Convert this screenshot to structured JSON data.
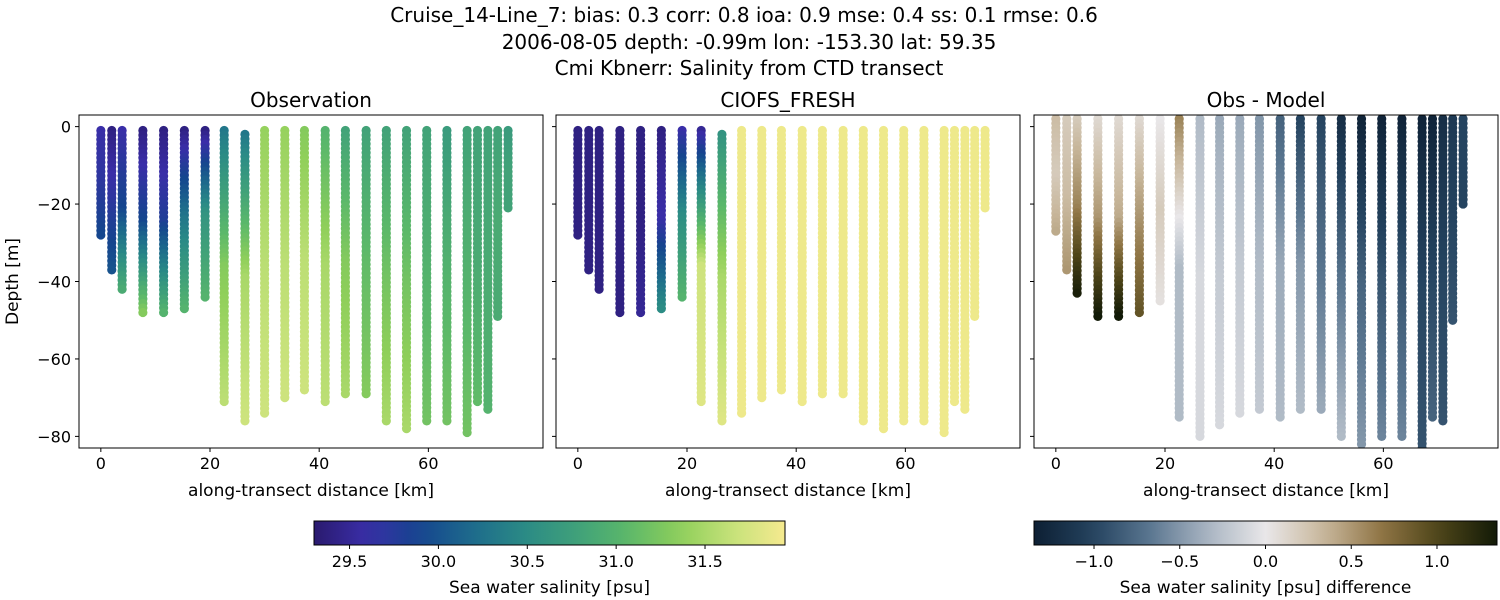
{
  "figure": {
    "title_lines": [
      "Cruise_14-Line_7: bias: 0.3  corr: 0.8  ioa: 0.9  mse: 0.4  ss: 0.1  rmse: 0.6",
      "2006-08-05 depth: -0.99m lon: -153.30 lat: 59.35",
      "Cmi Kbnerr: Salinity from CTD transect"
    ]
  },
  "colors": {
    "salinity_cmap": [
      "#2a1a6e",
      "#3a2ea8",
      "#15458e",
      "#1d6a8c",
      "#2a8a86",
      "#3fa07a",
      "#5bb86a",
      "#8fcf5a",
      "#c6e27a",
      "#f6ea8f"
    ],
    "difference_cmap": [
      "#0d1f33",
      "#23425e",
      "#5a7690",
      "#a9b5c2",
      "#e9e7e9",
      "#c8b79c",
      "#8f7545",
      "#4d4418",
      "#121a07"
    ]
  },
  "chart_data": [
    {
      "type": "scatter",
      "title": "Observation",
      "xlabel": "along-transect distance [km]",
      "ylabel": "Depth [m]",
      "xlim": [
        -4,
        81
      ],
      "ylim": [
        -83,
        3
      ],
      "xticks": [
        0,
        20,
        40,
        60
      ],
      "yticks": [
        0,
        -20,
        -40,
        -60,
        -80
      ],
      "colorbar": "salinity",
      "stations": [
        {
          "x": 0.0,
          "bottom": -28,
          "top": -1,
          "values": [
            29.6,
            29.7,
            29.9
          ]
        },
        {
          "x": 2.0,
          "bottom": -37,
          "top": -1,
          "values": [
            29.4,
            29.7,
            30.0
          ]
        },
        {
          "x": 3.9,
          "bottom": -42,
          "top": -1,
          "values": [
            29.6,
            29.9,
            30.9
          ]
        },
        {
          "x": 7.7,
          "bottom": -48,
          "top": -1,
          "values": [
            29.4,
            29.9,
            31.3
          ]
        },
        {
          "x": 11.5,
          "bottom": -48,
          "top": -1,
          "values": [
            29.4,
            29.8,
            31.0
          ]
        },
        {
          "x": 15.3,
          "bottom": -47,
          "top": -1,
          "values": [
            29.4,
            30.3,
            31.0
          ]
        },
        {
          "x": 19.1,
          "bottom": -44,
          "top": -1,
          "values": [
            29.4,
            30.6,
            31.0
          ]
        },
        {
          "x": 22.6,
          "bottom": -71,
          "top": -1,
          "values": [
            30.3,
            31.3,
            31.6
          ]
        },
        {
          "x": 26.4,
          "bottom": -76,
          "top": -2,
          "values": [
            30.3,
            31.5,
            31.7
          ]
        },
        {
          "x": 30.0,
          "bottom": -74,
          "top": -1,
          "values": [
            31.4,
            31.6,
            31.7
          ]
        },
        {
          "x": 33.7,
          "bottom": -70,
          "top": -1,
          "values": [
            31.4,
            31.6,
            31.7
          ]
        },
        {
          "x": 37.3,
          "bottom": -68,
          "top": -1,
          "values": [
            31.3,
            31.6,
            31.7
          ]
        },
        {
          "x": 41.1,
          "bottom": -71,
          "top": -1,
          "values": [
            31.0,
            31.5,
            31.6
          ]
        },
        {
          "x": 44.8,
          "bottom": -69,
          "top": -1,
          "values": [
            30.8,
            31.3,
            31.5
          ]
        },
        {
          "x": 48.6,
          "bottom": -69,
          "top": -1,
          "values": [
            30.8,
            31.1,
            31.3
          ]
        },
        {
          "x": 52.3,
          "bottom": -76,
          "top": -1,
          "values": [
            30.8,
            31.2,
            31.5
          ]
        },
        {
          "x": 56.0,
          "bottom": -78,
          "top": -1,
          "values": [
            30.8,
            31.2,
            31.5
          ]
        },
        {
          "x": 59.7,
          "bottom": -76,
          "top": -1,
          "values": [
            30.8,
            31.0,
            31.2
          ]
        },
        {
          "x": 63.4,
          "bottom": -76,
          "top": -1,
          "values": [
            30.7,
            31.0,
            31.2
          ]
        },
        {
          "x": 67.1,
          "bottom": -79,
          "top": -1,
          "values": [
            30.8,
            31.0,
            31.2
          ]
        },
        {
          "x": 69.0,
          "bottom": -71,
          "top": -1,
          "values": [
            30.8,
            30.9,
            31.1
          ]
        },
        {
          "x": 70.9,
          "bottom": -73,
          "top": -1,
          "values": [
            30.8,
            30.9,
            31.0
          ]
        },
        {
          "x": 72.7,
          "bottom": -49,
          "top": -1,
          "values": [
            30.8,
            30.9,
            30.9
          ]
        },
        {
          "x": 74.6,
          "bottom": -21,
          "top": -1,
          "values": [
            30.7,
            30.8,
            30.8
          ]
        }
      ]
    },
    {
      "type": "scatter",
      "title": "CIOFS_FRESH",
      "xlabel": "along-transect distance [km]",
      "ylabel": "",
      "xlim": [
        -4,
        81
      ],
      "ylim": [
        -83,
        3
      ],
      "xticks": [
        0,
        20,
        40,
        60
      ],
      "yticks": [
        0,
        -20,
        -40,
        -60,
        -80
      ],
      "colorbar": "salinity",
      "stations": [
        {
          "x": 0.0,
          "bottom": -28,
          "top": -1,
          "values": [
            29.4,
            29.4,
            29.4
          ]
        },
        {
          "x": 2.0,
          "bottom": -37,
          "top": -1,
          "values": [
            29.4,
            29.4,
            29.4
          ]
        },
        {
          "x": 3.9,
          "bottom": -42,
          "top": -1,
          "values": [
            29.4,
            29.4,
            29.4
          ]
        },
        {
          "x": 7.7,
          "bottom": -48,
          "top": -1,
          "values": [
            29.4,
            29.4,
            29.4
          ]
        },
        {
          "x": 11.5,
          "bottom": -48,
          "top": -1,
          "values": [
            29.4,
            29.4,
            29.5
          ]
        },
        {
          "x": 15.3,
          "bottom": -47,
          "top": -1,
          "values": [
            29.4,
            29.6,
            30.5
          ]
        },
        {
          "x": 19.1,
          "bottom": -44,
          "top": -1,
          "values": [
            29.6,
            30.5,
            31.0
          ]
        },
        {
          "x": 22.6,
          "bottom": -71,
          "top": -1,
          "values": [
            29.5,
            31.7,
            31.8
          ]
        },
        {
          "x": 26.4,
          "bottom": -76,
          "top": -2,
          "values": [
            30.6,
            31.5,
            31.8
          ]
        },
        {
          "x": 30.0,
          "bottom": -74,
          "top": -1,
          "values": [
            31.9,
            31.9,
            31.9
          ]
        },
        {
          "x": 33.7,
          "bottom": -70,
          "top": -1,
          "values": [
            31.9,
            31.9,
            31.9
          ]
        },
        {
          "x": 37.3,
          "bottom": -68,
          "top": -1,
          "values": [
            31.9,
            31.9,
            31.9
          ]
        },
        {
          "x": 41.1,
          "bottom": -71,
          "top": -1,
          "values": [
            31.9,
            31.9,
            31.9
          ]
        },
        {
          "x": 44.8,
          "bottom": -69,
          "top": -1,
          "values": [
            31.9,
            31.9,
            31.9
          ]
        },
        {
          "x": 48.6,
          "bottom": -69,
          "top": -1,
          "values": [
            31.9,
            31.9,
            31.9
          ]
        },
        {
          "x": 52.3,
          "bottom": -76,
          "top": -1,
          "values": [
            31.9,
            31.9,
            31.9
          ]
        },
        {
          "x": 56.0,
          "bottom": -78,
          "top": -1,
          "values": [
            31.9,
            31.9,
            31.9
          ]
        },
        {
          "x": 59.7,
          "bottom": -76,
          "top": -1,
          "values": [
            31.9,
            31.9,
            31.9
          ]
        },
        {
          "x": 63.4,
          "bottom": -76,
          "top": -1,
          "values": [
            31.9,
            31.9,
            31.9
          ]
        },
        {
          "x": 67.1,
          "bottom": -79,
          "top": -1,
          "values": [
            31.9,
            31.9,
            31.9
          ]
        },
        {
          "x": 69.0,
          "bottom": -71,
          "top": -1,
          "values": [
            31.9,
            31.9,
            31.9
          ]
        },
        {
          "x": 70.9,
          "bottom": -73,
          "top": -1,
          "values": [
            31.9,
            31.9,
            31.9
          ]
        },
        {
          "x": 72.7,
          "bottom": -49,
          "top": -1,
          "values": [
            31.9,
            31.9,
            31.9
          ]
        },
        {
          "x": 74.6,
          "bottom": -21,
          "top": -1,
          "values": [
            31.9,
            31.9,
            31.9
          ]
        }
      ]
    },
    {
      "type": "scatter",
      "title": "Obs - Model",
      "xlabel": "along-transect distance [km]",
      "ylabel": "",
      "xlim": [
        -4,
        81
      ],
      "ylim": [
        -83,
        3
      ],
      "xticks": [
        0,
        20,
        40,
        60
      ],
      "yticks": [
        0,
        -20,
        -40,
        -60,
        -80
      ],
      "colorbar": "difference",
      "stations": [
        {
          "x": 0.0,
          "bottom": -27,
          "top": 2,
          "values": [
            0.3,
            0.2,
            0.4
          ]
        },
        {
          "x": 2.0,
          "bottom": -37,
          "top": 2,
          "values": [
            0.2,
            0.3,
            0.5
          ]
        },
        {
          "x": 3.9,
          "bottom": -43,
          "top": 2,
          "values": [
            0.2,
            0.6,
            1.3
          ]
        },
        {
          "x": 7.7,
          "bottom": -49,
          "top": 2,
          "values": [
            0.1,
            0.5,
            1.35
          ]
        },
        {
          "x": 11.5,
          "bottom": -49,
          "top": 2,
          "values": [
            0.1,
            0.4,
            1.35
          ]
        },
        {
          "x": 15.3,
          "bottom": -48,
          "top": 2,
          "values": [
            0.1,
            0.5,
            0.9
          ]
        },
        {
          "x": 19.1,
          "bottom": -45,
          "top": 2,
          "values": [
            0.0,
            0.2,
            0.05
          ]
        },
        {
          "x": 22.6,
          "bottom": -75,
          "top": 2,
          "values": [
            0.6,
            -0.3,
            -0.3
          ]
        },
        {
          "x": 26.4,
          "bottom": -80,
          "top": 2,
          "values": [
            -0.3,
            -0.1,
            -0.1
          ]
        },
        {
          "x": 30.0,
          "bottom": -77,
          "top": 2,
          "values": [
            -0.4,
            -0.2,
            -0.1
          ]
        },
        {
          "x": 33.7,
          "bottom": -74,
          "top": 2,
          "values": [
            -0.4,
            -0.2,
            -0.1
          ]
        },
        {
          "x": 37.3,
          "bottom": -73,
          "top": 2,
          "values": [
            -0.5,
            -0.3,
            -0.2
          ]
        },
        {
          "x": 41.1,
          "bottom": -75,
          "top": 2,
          "values": [
            -0.8,
            -0.4,
            -0.3
          ]
        },
        {
          "x": 44.8,
          "bottom": -73,
          "top": 2,
          "values": [
            -1.0,
            -0.5,
            -0.3
          ]
        },
        {
          "x": 48.6,
          "bottom": -73,
          "top": 2,
          "values": [
            -1.0,
            -0.7,
            -0.4
          ]
        },
        {
          "x": 52.3,
          "bottom": -80,
          "top": 2,
          "values": [
            -1.2,
            -0.7,
            -0.3
          ]
        },
        {
          "x": 56.0,
          "bottom": -82,
          "top": 2,
          "values": [
            -1.3,
            -0.8,
            -0.5
          ]
        },
        {
          "x": 59.7,
          "bottom": -80,
          "top": 2,
          "values": [
            -1.3,
            -0.9,
            -0.6
          ]
        },
        {
          "x": 63.4,
          "bottom": -80,
          "top": 2,
          "values": [
            -1.3,
            -0.9,
            -0.6
          ]
        },
        {
          "x": 67.1,
          "bottom": -83,
          "top": 2,
          "values": [
            -1.3,
            -1.0,
            -0.9
          ]
        },
        {
          "x": 69.0,
          "bottom": -75,
          "top": 2,
          "values": [
            -1.3,
            -1.0,
            -0.8
          ]
        },
        {
          "x": 70.9,
          "bottom": -76,
          "top": 2,
          "values": [
            -1.2,
            -1.0,
            -0.9
          ]
        },
        {
          "x": 72.7,
          "bottom": -50,
          "top": 2,
          "values": [
            -1.1,
            -1.0,
            -0.9
          ]
        },
        {
          "x": 74.6,
          "bottom": -20,
          "top": 2,
          "values": [
            -1.0,
            -1.0,
            -1.0
          ]
        }
      ]
    }
  ],
  "colorbars": {
    "salinity": {
      "label": "Sea water salinity [psu]",
      "range": [
        29.3,
        31.95
      ],
      "ticks": [
        29.5,
        30.0,
        30.5,
        31.0,
        31.5
      ],
      "tick_labels": [
        "29.5",
        "30.0",
        "30.5",
        "31.0",
        "31.5"
      ]
    },
    "difference": {
      "label": "Sea water salinity [psu] difference",
      "range": [
        -1.35,
        1.35
      ],
      "ticks": [
        -1.0,
        -0.5,
        0.0,
        0.5,
        1.0
      ],
      "tick_labels": [
        "−1.0",
        "−0.5",
        "0.0",
        "0.5",
        "1.0"
      ]
    }
  }
}
